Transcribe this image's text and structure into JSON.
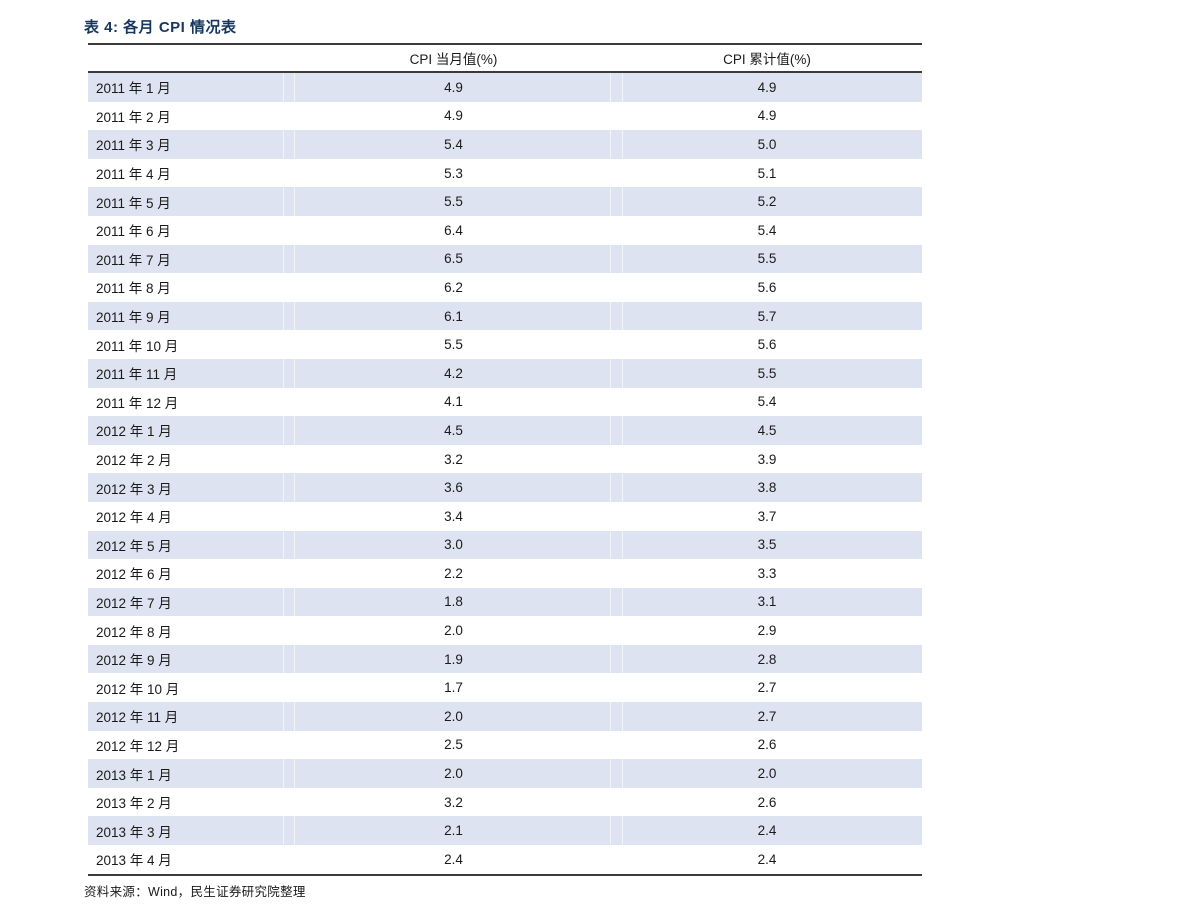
{
  "page": {
    "title": "表 4:  各月 CPI 情况表",
    "source": "资料来源：Wind，民生证券研究院整理"
  },
  "table": {
    "header_month": "",
    "header_current": "CPI 当月值(%)",
    "header_cumulative": "CPI 累计值(%)",
    "rows": [
      {
        "month": "2011 年 1 月",
        "current": "4.9",
        "cumulative": "4.9"
      },
      {
        "month": "2011 年 2 月",
        "current": "4.9",
        "cumulative": "4.9"
      },
      {
        "month": "2011 年 3 月",
        "current": "5.4",
        "cumulative": "5.0"
      },
      {
        "month": "2011 年 4 月",
        "current": "5.3",
        "cumulative": "5.1"
      },
      {
        "month": "2011 年 5 月",
        "current": "5.5",
        "cumulative": "5.2"
      },
      {
        "month": "2011 年 6 月",
        "current": "6.4",
        "cumulative": "5.4"
      },
      {
        "month": "2011 年 7 月",
        "current": "6.5",
        "cumulative": "5.5"
      },
      {
        "month": "2011 年 8 月",
        "current": "6.2",
        "cumulative": "5.6"
      },
      {
        "month": "2011 年 9 月",
        "current": "6.1",
        "cumulative": "5.7"
      },
      {
        "month": "2011 年 10 月",
        "current": "5.5",
        "cumulative": "5.6"
      },
      {
        "month": "2011 年 11 月",
        "current": "4.2",
        "cumulative": "5.5"
      },
      {
        "month": "2011 年 12 月",
        "current": "4.1",
        "cumulative": "5.4"
      },
      {
        "month": "2012 年 1 月",
        "current": "4.5",
        "cumulative": "4.5"
      },
      {
        "month": "2012 年 2 月",
        "current": "3.2",
        "cumulative": "3.9"
      },
      {
        "month": "2012 年 3 月",
        "current": "3.6",
        "cumulative": "3.8"
      },
      {
        "month": "2012 年 4 月",
        "current": "3.4",
        "cumulative": "3.7"
      },
      {
        "month": "2012 年 5 月",
        "current": "3.0",
        "cumulative": "3.5"
      },
      {
        "month": "2012 年 6 月",
        "current": "2.2",
        "cumulative": "3.3"
      },
      {
        "month": "2012 年 7 月",
        "current": "1.8",
        "cumulative": "3.1"
      },
      {
        "month": "2012 年 8 月",
        "current": "2.0",
        "cumulative": "2.9"
      },
      {
        "month": "2012 年 9 月",
        "current": "1.9",
        "cumulative": "2.8"
      },
      {
        "month": "2012 年 10 月",
        "current": "1.7",
        "cumulative": "2.7"
      },
      {
        "month": "2012 年 11 月",
        "current": "2.0",
        "cumulative": "2.7"
      },
      {
        "month": "2012 年 12 月",
        "current": "2.5",
        "cumulative": "2.6"
      },
      {
        "month": "2013 年 1 月",
        "current": "2.0",
        "cumulative": "2.0"
      },
      {
        "month": "2013 年 2 月",
        "current": "3.2",
        "cumulative": "2.6"
      },
      {
        "month": "2013 年 3 月",
        "current": "2.1",
        "cumulative": "2.4"
      },
      {
        "month": "2013 年 4 月",
        "current": "2.4",
        "cumulative": "2.4"
      }
    ]
  },
  "colors": {
    "title_blue": "#17365d",
    "row_stripe": "#dde3f0",
    "rule_dark": "#3b3b3b",
    "text": "#1a1a1a"
  }
}
